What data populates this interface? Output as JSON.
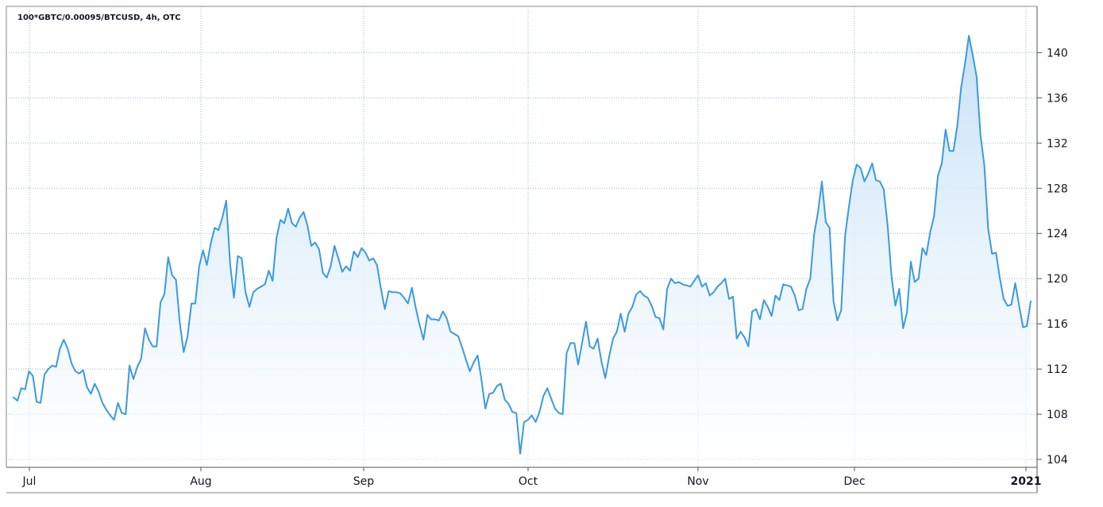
{
  "chart_data": {
    "type": "area",
    "title": "100*GBTC/0.00095/BTCUSD, 4h, OTC",
    "xlabel": "",
    "ylabel": "",
    "x_ticks": [
      "Jul",
      "Aug",
      "Sep",
      "Oct",
      "Nov",
      "Dec",
      "2021"
    ],
    "y_ticks": [
      104,
      108,
      112,
      116,
      120,
      124,
      128,
      132,
      136,
      140
    ],
    "ylim": [
      103.3,
      144.1
    ],
    "grid": true,
    "legend": "none",
    "line_color": "#3a9ae0",
    "fill_color": "#cfe5f8",
    "grid_color": "#8fbfc7",
    "series": [
      {
        "values": [
          109.5,
          109.2,
          110.3,
          110.2,
          111.8,
          111.4,
          109.1,
          109.0,
          111.5,
          112.0,
          112.3,
          112.2,
          113.8,
          114.6,
          113.8,
          112.5,
          111.8,
          111.6,
          111.9,
          110.4,
          109.8,
          110.7,
          110.0,
          109.0,
          108.4,
          107.9,
          107.5,
          109.0,
          108.1,
          108.0,
          112.3,
          111.1,
          112.2,
          112.9,
          115.6,
          114.6,
          114.0,
          114.0,
          117.9,
          118.6,
          121.9,
          120.3,
          119.9,
          116.1,
          113.5,
          114.9,
          117.8,
          117.8,
          121.1,
          122.5,
          121.2,
          123.1,
          124.5,
          124.3,
          125.4,
          126.9,
          121.3,
          118.3,
          122.0,
          121.8,
          118.8,
          117.5,
          118.8,
          119.1,
          119.3,
          119.5,
          120.7,
          119.8,
          123.6,
          125.2,
          124.9,
          126.2,
          124.9,
          124.6,
          125.4,
          125.9,
          124.7,
          122.9,
          123.2,
          122.6,
          120.5,
          120.1,
          121.1,
          122.9,
          121.8,
          120.6,
          121.1,
          120.7,
          122.4,
          121.9,
          122.7,
          122.3,
          121.6,
          121.8,
          121.2,
          119.1,
          117.3,
          118.9,
          118.8,
          118.8,
          118.7,
          118.3,
          117.8,
          119.2,
          117.4,
          115.9,
          114.6,
          116.8,
          116.4,
          116.4,
          116.3,
          117.1,
          116.5,
          115.3,
          115.1,
          114.9,
          113.9,
          112.8,
          111.8,
          112.6,
          113.2,
          111.0,
          108.5,
          109.8,
          109.9,
          110.5,
          110.7,
          109.3,
          108.9,
          108.2,
          108.1,
          104.5,
          107.3,
          107.5,
          107.9,
          107.3,
          108.2,
          109.6,
          110.3,
          109.4,
          108.5,
          108.1,
          108.0,
          113.4,
          114.3,
          114.3,
          112.4,
          114.3,
          116.2,
          114.0,
          113.8,
          114.7,
          112.7,
          111.2,
          113.1,
          114.7,
          115.3,
          116.9,
          115.3,
          116.9,
          117.5,
          118.6,
          118.9,
          118.5,
          118.3,
          117.6,
          116.6,
          116.5,
          115.5,
          119.1,
          120.0,
          119.6,
          119.7,
          119.5,
          119.4,
          119.3,
          119.8,
          120.3,
          119.3,
          119.6,
          118.5,
          118.8,
          119.3,
          119.6,
          120.0,
          118.2,
          118.4,
          114.7,
          115.3,
          114.8,
          114.0,
          117.1,
          117.3,
          116.4,
          118.1,
          117.5,
          116.7,
          118.5,
          118.1,
          119.5,
          119.4,
          119.3,
          118.5,
          117.2,
          117.3,
          119.1,
          120.0,
          123.9,
          125.9,
          128.6,
          125.0,
          124.5,
          118.0,
          116.3,
          117.2,
          123.8,
          126.4,
          128.7,
          130.1,
          129.8,
          128.6,
          129.3,
          130.2,
          128.7,
          128.6,
          127.9,
          124.7,
          120.2,
          117.6,
          119.1,
          115.6,
          117.0,
          121.5,
          119.7,
          120.0,
          122.7,
          122.1,
          124.1,
          125.5,
          129.1,
          130.2,
          133.2,
          131.3,
          131.3,
          133.5,
          136.9,
          139.0,
          141.5,
          139.8,
          137.9,
          132.7,
          130.0,
          124.4,
          122.2,
          122.3,
          120.1,
          118.2,
          117.6,
          117.7,
          119.6,
          117.6,
          115.7,
          115.8,
          118.0
        ]
      }
    ]
  }
}
